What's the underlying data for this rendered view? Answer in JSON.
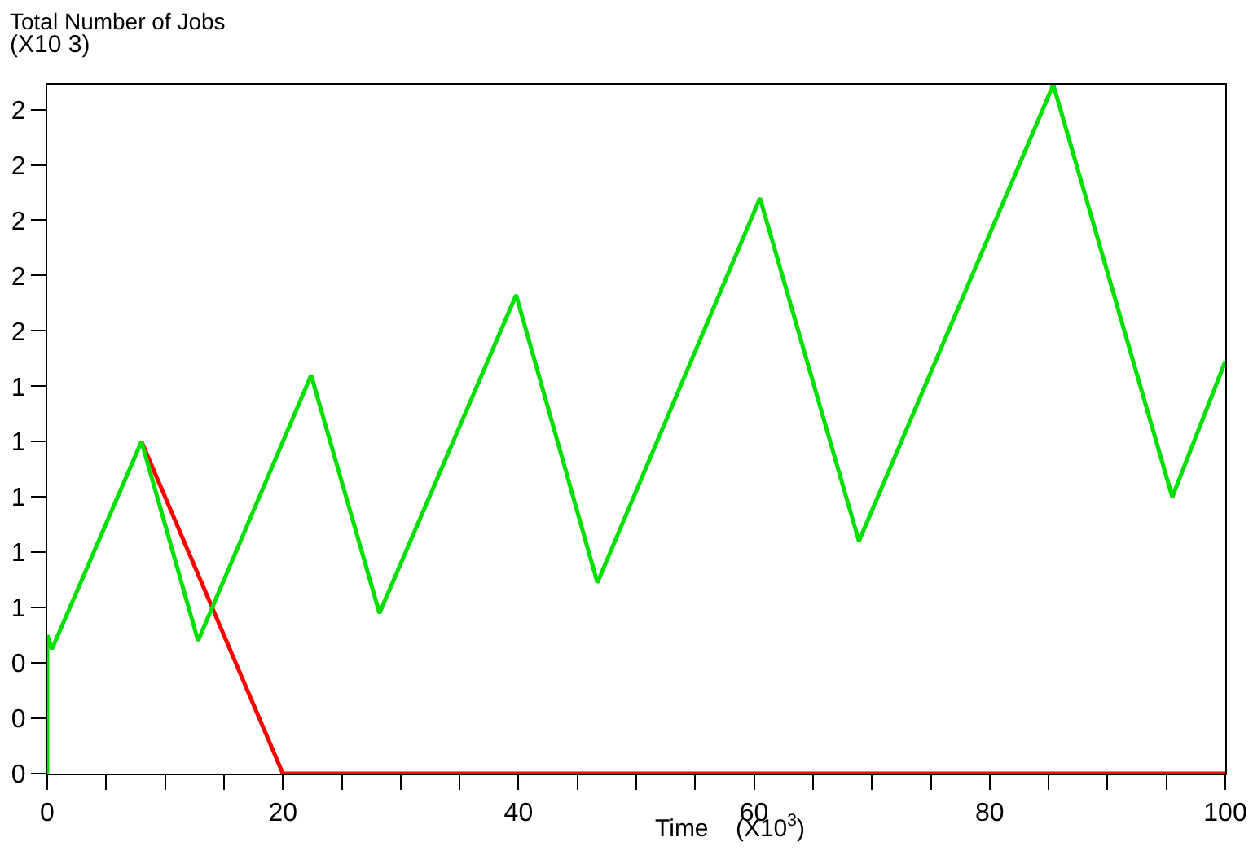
{
  "chart_data": {
    "type": "line",
    "title": "Total Number of Jobs",
    "ylabel": "(X10 3)",
    "xlabel": "Time    (X10$^{3}$)",
    "xlim": [
      0,
      100
    ],
    "xticks": [
      0,
      {
        "value": 5,
        "label": null
      },
      {
        "value": 10,
        "label": null
      },
      {
        "value": 15,
        "label": null
      },
      20,
      {
        "value": 25,
        "label": null
      },
      {
        "value": 30,
        "label": null
      },
      {
        "value": 35,
        "label": null
      },
      40,
      {
        "value": 45,
        "label": null
      },
      {
        "value": 50,
        "label": null
      },
      {
        "value": 55,
        "label": null
      },
      60,
      {
        "value": 65,
        "label": null
      },
      {
        "value": 70,
        "label": null
      },
      {
        "value": 75,
        "label": null
      },
      80,
      {
        "value": 85,
        "label": null
      },
      {
        "value": 90,
        "label": null
      },
      {
        "value": 95,
        "label": null
      },
      100
    ],
    "ylim": [
      0,
      2.49
    ],
    "yticks": [
      {
        "value": 0,
        "label": "0"
      },
      {
        "value": 0.2,
        "label": "0"
      },
      {
        "value": 0.4,
        "label": "0"
      },
      {
        "value": 0.6,
        "label": "1"
      },
      {
        "value": 0.8,
        "label": "1"
      },
      {
        "value": 1,
        "label": "1"
      },
      {
        "value": 1.2,
        "label": "1"
      },
      {
        "value": 1.4,
        "label": "1"
      },
      {
        "value": 1.6,
        "label": "2"
      },
      {
        "value": 1.8,
        "label": "2"
      },
      {
        "value": 2,
        "label": "2"
      },
      {
        "value": 2.2,
        "label": "2"
      },
      {
        "value": 2.4,
        "label": "2"
      }
    ],
    "grid": false,
    "marker": "none",
    "line_style": "solid",
    "series": [
      {
        "color": "#ff0000",
        "x": [
          8,
          20,
          100
        ],
        "values": [
          1.2,
          0,
          0
        ]
      },
      {
        "color": "#00e000",
        "x": [
          0,
          0,
          0.4,
          8,
          12.8,
          22.4,
          28.2,
          39.8,
          46.7,
          60.5,
          68.9,
          85.4,
          95.5,
          100
        ],
        "values": [
          0,
          0.5,
          0.45,
          1.2,
          0.48,
          1.44,
          0.58,
          1.73,
          0.69,
          2.08,
          0.84,
          2.49,
          1,
          1.49
        ]
      }
    ]
  }
}
